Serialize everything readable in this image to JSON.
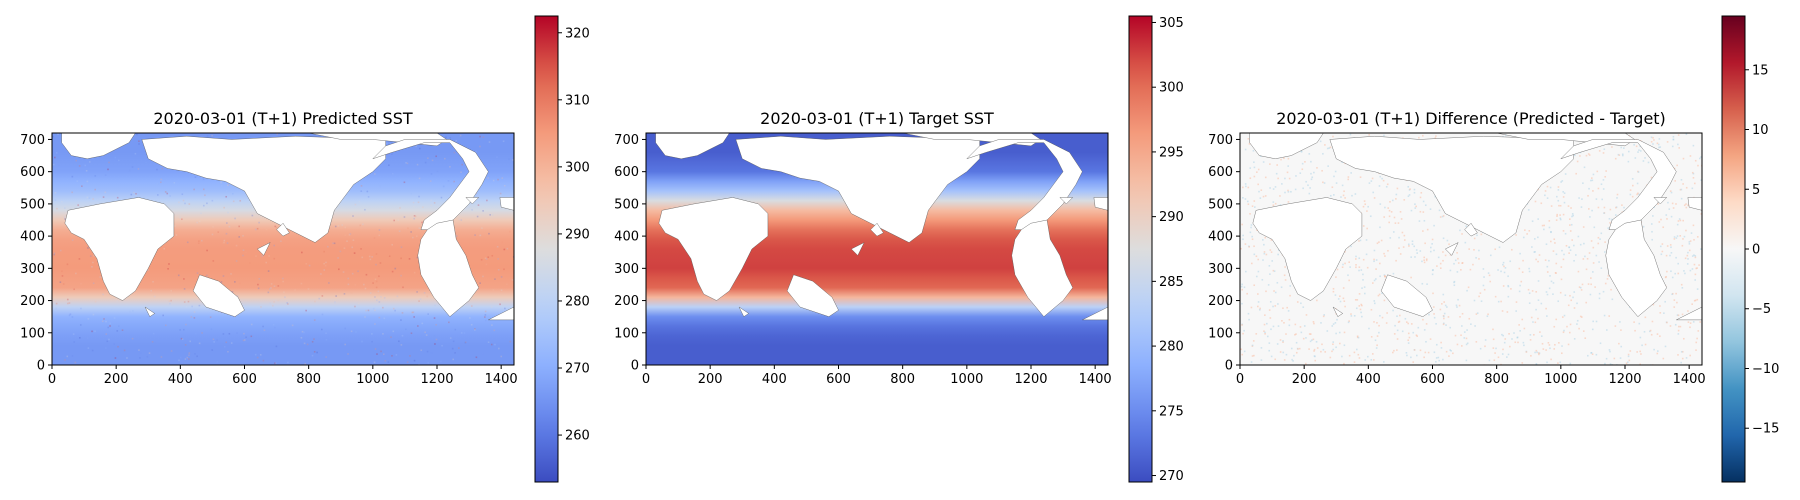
{
  "figure": {
    "background": "#ffffff"
  },
  "chart_data": [
    {
      "type": "heatmap",
      "title": "2020-03-01 (T+1)  Predicted SST",
      "xlabel": "",
      "ylabel": "",
      "xlim": [
        0,
        1440
      ],
      "ylim": [
        0,
        720
      ],
      "xticks": [
        0,
        200,
        400,
        600,
        800,
        1000,
        1200,
        1400
      ],
      "yticks": [
        0,
        100,
        200,
        300,
        400,
        500,
        600,
        700
      ],
      "colormap": "coolwarm",
      "colorbar": {
        "min": 253,
        "max": 322.5,
        "ticks": [
          260,
          270,
          280,
          290,
          300,
          310,
          320
        ]
      },
      "field": "sea surface temperature",
      "noisy": true,
      "profile": {
        "lat_rows": [
          720,
          660,
          600,
          540,
          480,
          430,
          380,
          300,
          230,
          190,
          160,
          110,
          60,
          0
        ],
        "values": [
          266,
          266,
          268,
          274,
          286,
          300,
          304.5,
          305,
          303,
          285,
          272,
          268,
          266,
          266
        ]
      },
      "grid": false
    },
    {
      "type": "heatmap",
      "title": "2020-03-01 (T+1)  Target SST",
      "xlabel": "",
      "ylabel": "",
      "xlim": [
        0,
        1440
      ],
      "ylim": [
        0,
        720
      ],
      "xticks": [
        0,
        200,
        400,
        600,
        800,
        1000,
        1200,
        1400
      ],
      "yticks": [
        0,
        100,
        200,
        300,
        400,
        500,
        600,
        700
      ],
      "colormap": "coolwarm",
      "colorbar": {
        "min": 269.5,
        "max": 305.5,
        "ticks": [
          270,
          275,
          280,
          285,
          290,
          295,
          300,
          305
        ]
      },
      "field": "sea surface temperature",
      "noisy": false,
      "profile": {
        "lat_rows": [
          720,
          660,
          600,
          540,
          480,
          430,
          380,
          300,
          230,
          190,
          160,
          110,
          60,
          0
        ],
        "values": [
          271,
          271,
          273,
          281,
          293,
          299,
          302,
          302.5,
          300,
          287,
          276,
          272,
          271,
          271
        ]
      },
      "grid": false
    },
    {
      "type": "heatmap",
      "title": "2020-03-01 (T+1)  Difference (Predicted - Target)",
      "xlabel": "",
      "ylabel": "",
      "xlim": [
        0,
        1440
      ],
      "ylim": [
        0,
        720
      ],
      "xticks": [
        0,
        200,
        400,
        600,
        800,
        1000,
        1200,
        1400
      ],
      "yticks": [
        0,
        100,
        200,
        300,
        400,
        500,
        600,
        700
      ],
      "colormap": "RdBu_r",
      "colorbar": {
        "min": -19.5,
        "max": 19.5,
        "ticks": [
          -15,
          -10,
          -5,
          0,
          5,
          10,
          15
        ]
      },
      "field": "difference",
      "noisy": true,
      "profile": {
        "lat_rows": [
          720,
          0
        ],
        "values": [
          0,
          0
        ]
      },
      "grid": false
    }
  ]
}
